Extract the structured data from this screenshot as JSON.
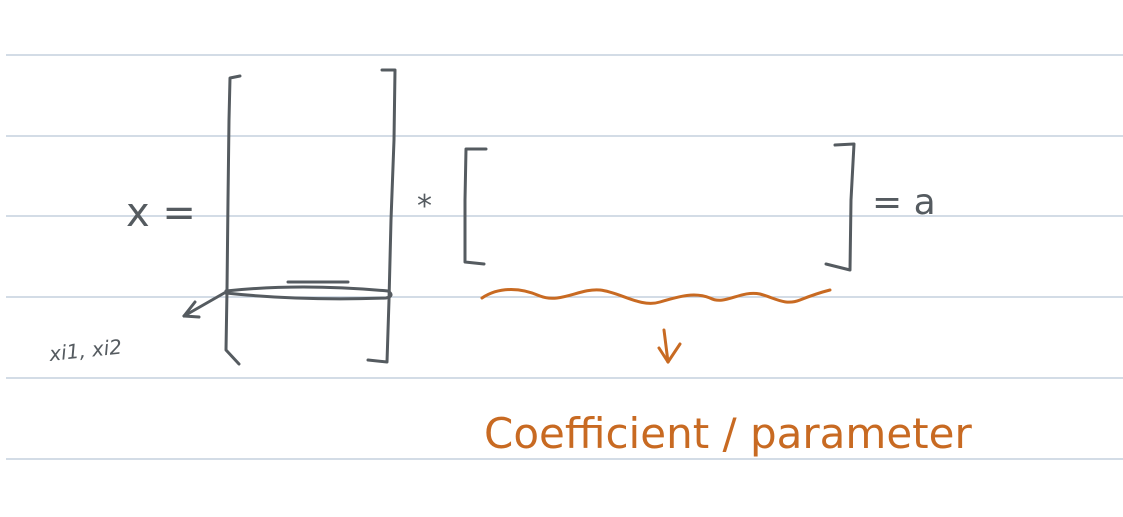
{
  "note": {
    "equation_lhs": "x =",
    "operator": "*",
    "equation_rhs": "= a",
    "row_label": "xi1, xi2",
    "annotation": "Coefficient / parameter",
    "colors": {
      "ruled_line": "#b9c6d6",
      "dark_ink": "#555b60",
      "orange_ink": "#c86a22",
      "background": "#ffffff"
    },
    "icons": [
      "arrow-left-icon",
      "arrow-down-icon"
    ]
  }
}
